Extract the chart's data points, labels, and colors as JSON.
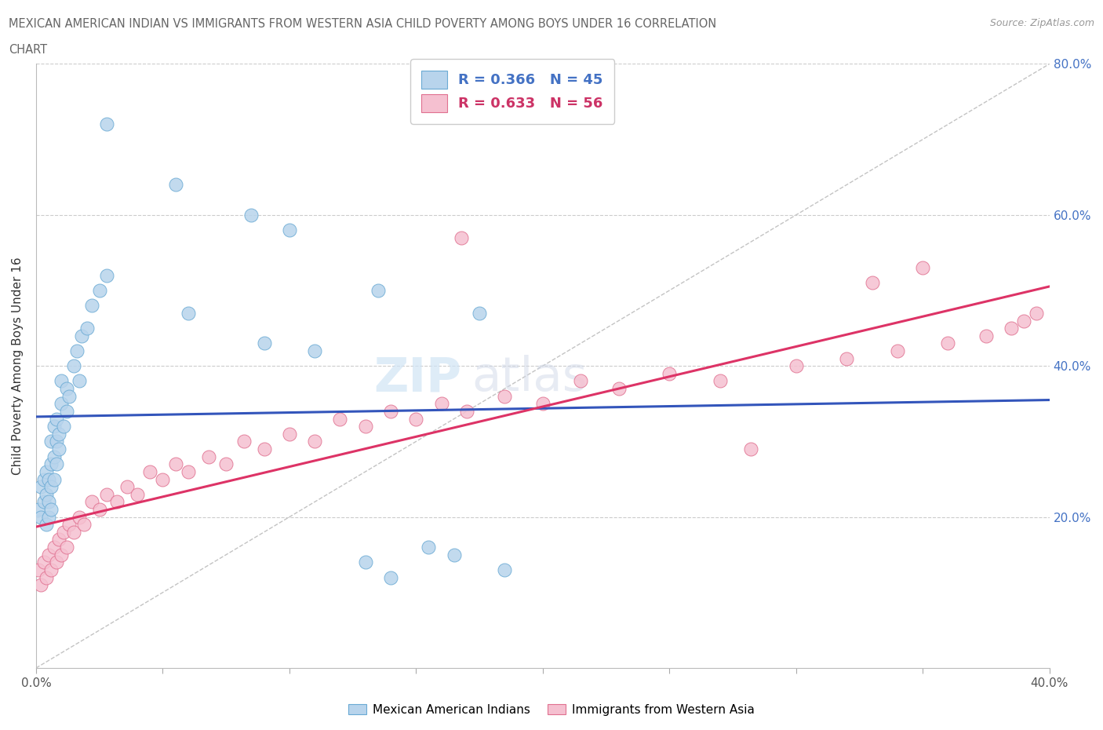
{
  "title_line1": "MEXICAN AMERICAN INDIAN VS IMMIGRANTS FROM WESTERN ASIA CHILD POVERTY AMONG BOYS UNDER 16 CORRELATION",
  "title_line2": "CHART",
  "source": "Source: ZipAtlas.com",
  "ylabel": "Child Poverty Among Boys Under 16",
  "xlim": [
    0.0,
    0.4
  ],
  "ylim": [
    0.0,
    0.8
  ],
  "blue_R": 0.366,
  "blue_N": 45,
  "pink_R": 0.633,
  "pink_N": 56,
  "blue_color": "#b8d4ec",
  "blue_edge": "#6aaad4",
  "pink_color": "#f5c0d0",
  "pink_edge": "#e07090",
  "blue_line_color": "#3355bb",
  "pink_line_color": "#dd3366",
  "watermark_zip": "ZIP",
  "watermark_atlas": "atlas",
  "legend_blue_color": "#4472c4",
  "legend_pink_color": "#cc3366",
  "blue_x": [
    0.001,
    0.002,
    0.002,
    0.003,
    0.003,
    0.004,
    0.004,
    0.004,
    0.005,
    0.005,
    0.005,
    0.006,
    0.006,
    0.006,
    0.006,
    0.007,
    0.007,
    0.007,
    0.008,
    0.008,
    0.008,
    0.009,
    0.009,
    0.01,
    0.01,
    0.011,
    0.012,
    0.012,
    0.013,
    0.015,
    0.016,
    0.017,
    0.018,
    0.02,
    0.022,
    0.025,
    0.028,
    0.06,
    0.09,
    0.11,
    0.13,
    0.14,
    0.155,
    0.165,
    0.185
  ],
  "blue_y": [
    0.21,
    0.2,
    0.24,
    0.22,
    0.25,
    0.19,
    0.23,
    0.26,
    0.2,
    0.22,
    0.25,
    0.21,
    0.24,
    0.27,
    0.3,
    0.25,
    0.28,
    0.32,
    0.27,
    0.3,
    0.33,
    0.29,
    0.31,
    0.35,
    0.38,
    0.32,
    0.34,
    0.37,
    0.36,
    0.4,
    0.42,
    0.38,
    0.44,
    0.45,
    0.48,
    0.5,
    0.52,
    0.47,
    0.43,
    0.42,
    0.14,
    0.12,
    0.16,
    0.15,
    0.13
  ],
  "blue_y_outliers": [
    0.72,
    0.64,
    0.6,
    0.58,
    0.5,
    0.47
  ],
  "blue_x_outliers": [
    0.028,
    0.055,
    0.085,
    0.1,
    0.135,
    0.175
  ],
  "pink_x": [
    0.001,
    0.002,
    0.003,
    0.004,
    0.005,
    0.006,
    0.007,
    0.008,
    0.009,
    0.01,
    0.011,
    0.012,
    0.013,
    0.015,
    0.017,
    0.019,
    0.022,
    0.025,
    0.028,
    0.032,
    0.036,
    0.04,
    0.045,
    0.05,
    0.055,
    0.06,
    0.068,
    0.075,
    0.082,
    0.09,
    0.1,
    0.11,
    0.12,
    0.13,
    0.14,
    0.15,
    0.16,
    0.17,
    0.185,
    0.2,
    0.215,
    0.23,
    0.25,
    0.27,
    0.3,
    0.32,
    0.34,
    0.36,
    0.375,
    0.385,
    0.39,
    0.395,
    0.168,
    0.282,
    0.33,
    0.35
  ],
  "pink_y": [
    0.13,
    0.11,
    0.14,
    0.12,
    0.15,
    0.13,
    0.16,
    0.14,
    0.17,
    0.15,
    0.18,
    0.16,
    0.19,
    0.18,
    0.2,
    0.19,
    0.22,
    0.21,
    0.23,
    0.22,
    0.24,
    0.23,
    0.26,
    0.25,
    0.27,
    0.26,
    0.28,
    0.27,
    0.3,
    0.29,
    0.31,
    0.3,
    0.33,
    0.32,
    0.34,
    0.33,
    0.35,
    0.34,
    0.36,
    0.35,
    0.38,
    0.37,
    0.39,
    0.38,
    0.4,
    0.41,
    0.42,
    0.43,
    0.44,
    0.45,
    0.46,
    0.47,
    0.57,
    0.29,
    0.51,
    0.53
  ]
}
